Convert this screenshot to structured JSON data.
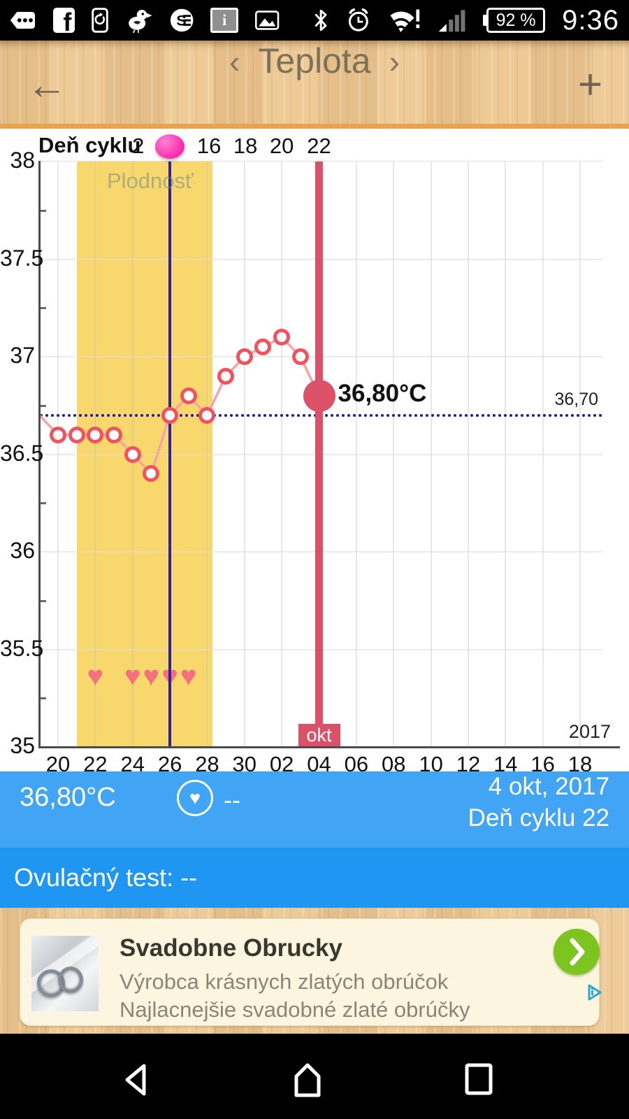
{
  "status_bar": {
    "time": "9:36",
    "battery_percent": "92 %",
    "icons_left": [
      "notification-tag-icon",
      "facebook-icon",
      "sync-phone-icon",
      "bird-app-icon",
      "s-app-icon",
      "info-battery-icon",
      "photo-icon"
    ],
    "icons_right": [
      "bluetooth-icon",
      "alarm-icon",
      "wifi-alert-icon",
      "signal-icon"
    ],
    "facebook_glyph": "f",
    "info_glyph": "i"
  },
  "header": {
    "back_icon": "←",
    "prev_icon": "‹",
    "title": "Teplota",
    "next_icon": "›",
    "add_icon": "+"
  },
  "chart_data": {
    "type": "line",
    "title": "Teplota",
    "cycle_day_row": {
      "label": "Deň cyklu",
      "ticks": [
        {
          "text": "2",
          "i": 4.3
        },
        {
          "text": "16",
          "i": 8.1
        },
        {
          "text": "18",
          "i": 10.05
        },
        {
          "text": "20",
          "i": 12.0
        },
        {
          "text": "22",
          "i": 14.0
        }
      ],
      "ovulation_dot_i": 6
    },
    "x_axis": {
      "labels": [
        {
          "text": "20",
          "i": 0
        },
        {
          "text": "22",
          "i": 2
        },
        {
          "text": "24",
          "i": 4
        },
        {
          "text": "26",
          "i": 6
        },
        {
          "text": "28",
          "i": 8
        },
        {
          "text": "30",
          "i": 10
        },
        {
          "text": "02",
          "i": 12
        },
        {
          "text": "04",
          "i": 14
        },
        {
          "text": "06",
          "i": 16
        },
        {
          "text": "08",
          "i": 18
        },
        {
          "text": "10",
          "i": 20
        },
        {
          "text": "12",
          "i": 22
        },
        {
          "text": "14",
          "i": 24
        },
        {
          "text": "16",
          "i": 26
        },
        {
          "text": "18",
          "i": 28
        }
      ],
      "month_label": "okt",
      "month_i": 14,
      "year_label": "2017"
    },
    "y_axis": {
      "ticks": [
        "38",
        "37.5",
        "37",
        "36.5",
        "36",
        "35.5",
        "35"
      ],
      "values": [
        38,
        37.5,
        37,
        36.5,
        36,
        35.5,
        35
      ],
      "minor_ticks": [
        37.75,
        37.25,
        36.75,
        36.25,
        35.75,
        35.25
      ],
      "ylim": [
        35,
        38
      ]
    },
    "temperature_points": [
      {
        "i": -1,
        "value": 36.7,
        "clipped": true
      },
      {
        "i": 0,
        "value": 36.6
      },
      {
        "i": 1,
        "value": 36.6
      },
      {
        "i": 2,
        "value": 36.6
      },
      {
        "i": 3,
        "value": 36.6
      },
      {
        "i": 4,
        "value": 36.5
      },
      {
        "i": 5,
        "value": 36.4
      },
      {
        "i": 6,
        "value": 36.7
      },
      {
        "i": 7,
        "value": 36.8
      },
      {
        "i": 8,
        "value": 36.7
      },
      {
        "i": 9,
        "value": 36.9
      },
      {
        "i": 10,
        "value": 37.0
      },
      {
        "i": 11,
        "value": 37.05
      },
      {
        "i": 12,
        "value": 37.1
      },
      {
        "i": 13,
        "value": 37.0
      },
      {
        "i": 14,
        "value": 36.8,
        "current": true
      }
    ],
    "current_point_label": "36,80°C",
    "coverline": {
      "value": 36.7,
      "label": "36,70"
    },
    "fertility_band": {
      "from_i": 1.0,
      "to_i": 8.3,
      "label": "Plodnosť"
    },
    "ovulation_line_i": 6,
    "selected_day_line_i": 14,
    "intercourse_hearts": {
      "i": [
        2,
        4,
        5,
        6,
        7
      ],
      "row_value": 35.35,
      "glyph": "♥"
    }
  },
  "info_bar": {
    "temperature": "36,80°C",
    "heart_icon_value": "--",
    "heart_glyph": "♥",
    "date": "4 okt, 2017",
    "cycle_day": "Deň cyklu 22"
  },
  "ovulation_bar": {
    "label": "Ovulačný test: --"
  },
  "ad": {
    "title": "Svadobne Obrucky",
    "line1": "Výrobca krásnych zlatých obrúčok",
    "line2": "Najlacnejšie svadobné zlaté obrúčky",
    "cta_icon": "chevron-right-icon",
    "adchoices_icon": "adchoices-icon"
  },
  "colors": {
    "accent_red": "#db5167",
    "line_pink": "#f5a3ab",
    "marker_red": "#f0525e",
    "band_yellow": "#f8d76c",
    "cover_navy": "#1a18b4",
    "ovulation_blue": "#2b23a5",
    "info_blue": "#41a4f5",
    "ovulation_bar_blue": "#1e96f2",
    "heart_pink": "#f4707f",
    "green_cta": "#7cc41f",
    "dot_pink": "#fa28ac"
  }
}
